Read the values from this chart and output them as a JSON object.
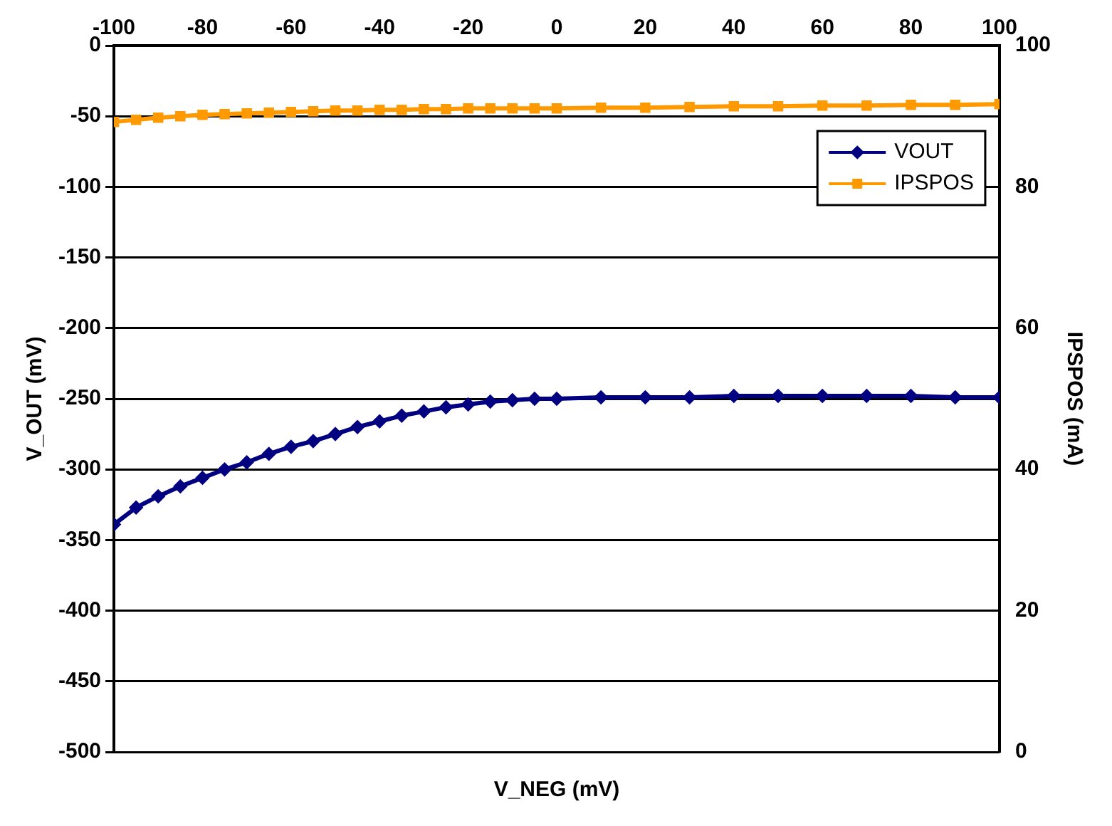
{
  "chart_data": {
    "type": "line",
    "xlabel": "V_NEG (mV)",
    "ylabel": "V_OUT (mV)",
    "y2label": "IPSPOS (mA)",
    "x": [
      -100,
      -95,
      -90,
      -85,
      -80,
      -75,
      -70,
      -65,
      -60,
      -55,
      -50,
      -45,
      -40,
      -35,
      -30,
      -25,
      -20,
      -15,
      -10,
      -5,
      0,
      10,
      20,
      30,
      40,
      50,
      60,
      70,
      80,
      90,
      100
    ],
    "series": [
      {
        "name": "VOUT",
        "color": "#000080",
        "marker": "diamond",
        "values": [
          -339,
          -327,
          -319,
          -312,
          -306,
          -300,
          -295,
          -289,
          -284,
          -280,
          -275,
          -270,
          -266,
          -262,
          -259,
          -256,
          -254,
          -252,
          -251,
          -250,
          -250,
          -249,
          -249,
          -249,
          -248,
          -248,
          -248,
          -248,
          -248,
          -249,
          -249
        ]
      },
      {
        "name": "IPSPOS",
        "color": "#ff9900",
        "marker": "square",
        "axis": "y2",
        "values": [
          89.2,
          89.5,
          89.8,
          90.0,
          90.2,
          90.3,
          90.4,
          90.5,
          90.6,
          90.7,
          90.8,
          90.8,
          90.9,
          90.9,
          91.0,
          91.0,
          91.1,
          91.1,
          91.1,
          91.1,
          91.1,
          91.2,
          91.2,
          91.3,
          91.4,
          91.4,
          91.5,
          91.5,
          91.6,
          91.6,
          91.7
        ]
      }
    ],
    "xlim": [
      -100,
      100
    ],
    "xticks": [
      -100,
      -80,
      -60,
      -40,
      -20,
      0,
      20,
      40,
      60,
      80,
      100
    ],
    "ylim": [
      -500,
      0
    ],
    "yticks": [
      -500,
      -450,
      -400,
      -350,
      -300,
      -250,
      -200,
      -150,
      -100,
      -50,
      0
    ],
    "y2lim": [
      0,
      100
    ],
    "y2ticks": [
      0,
      20,
      40,
      60,
      80,
      100
    ],
    "grid": "y",
    "legend": "top right",
    "line_style": "solid"
  }
}
